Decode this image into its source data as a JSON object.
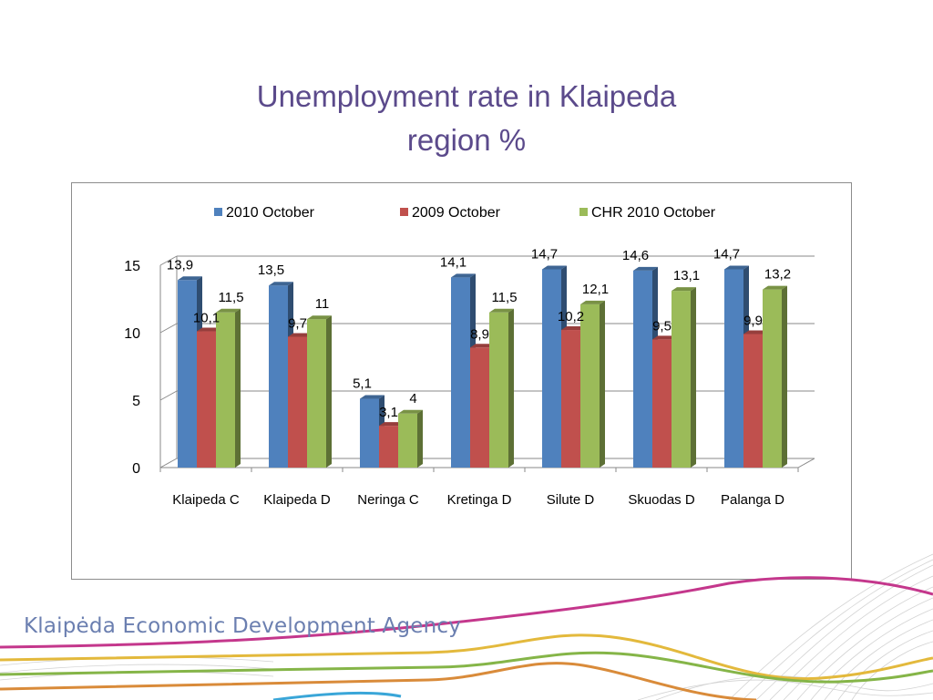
{
  "slide": {
    "title_line1": "Unemployment rate in Klaipeda",
    "title_line2": "region %",
    "agency": "Klaipėda Economic Development Agency"
  },
  "chart_data": {
    "type": "bar",
    "style": "3d-clustered",
    "title": "",
    "xlabel": "",
    "ylabel": "",
    "ylim": [
      0,
      15
    ],
    "yticks": [
      0,
      5,
      10,
      15
    ],
    "grid": true,
    "legend_position": "top",
    "categories": [
      "Klaipeda C",
      "Klaipeda D",
      "Neringa C",
      "Kretinga D",
      "Silute D",
      "Skuodas D",
      "Palanga D"
    ],
    "series": [
      {
        "name": "2010 October",
        "color": "#4f81bd",
        "values": [
          13.9,
          13.5,
          5.1,
          14.1,
          14.7,
          14.6,
          14.7
        ],
        "labels": [
          "13,9",
          "13,5",
          "5,1",
          "14,1",
          "14,7",
          "14,6",
          "14,7"
        ]
      },
      {
        "name": "2009 October",
        "color": "#c0504d",
        "values": [
          10.1,
          9.7,
          3.1,
          8.9,
          10.2,
          9.5,
          9.9
        ],
        "labels": [
          "10,1",
          "9,7",
          "3,1",
          "8,9",
          "10,2",
          "9,5",
          "9,9"
        ]
      },
      {
        "name": "CHR 2010 October",
        "color": "#9bbb59",
        "values": [
          11.5,
          11,
          4,
          11.5,
          12.1,
          13.1,
          13.2
        ],
        "labels": [
          "11,5",
          "11",
          "4",
          "11,5",
          "12,1",
          "13,1",
          "13,2"
        ]
      }
    ]
  }
}
